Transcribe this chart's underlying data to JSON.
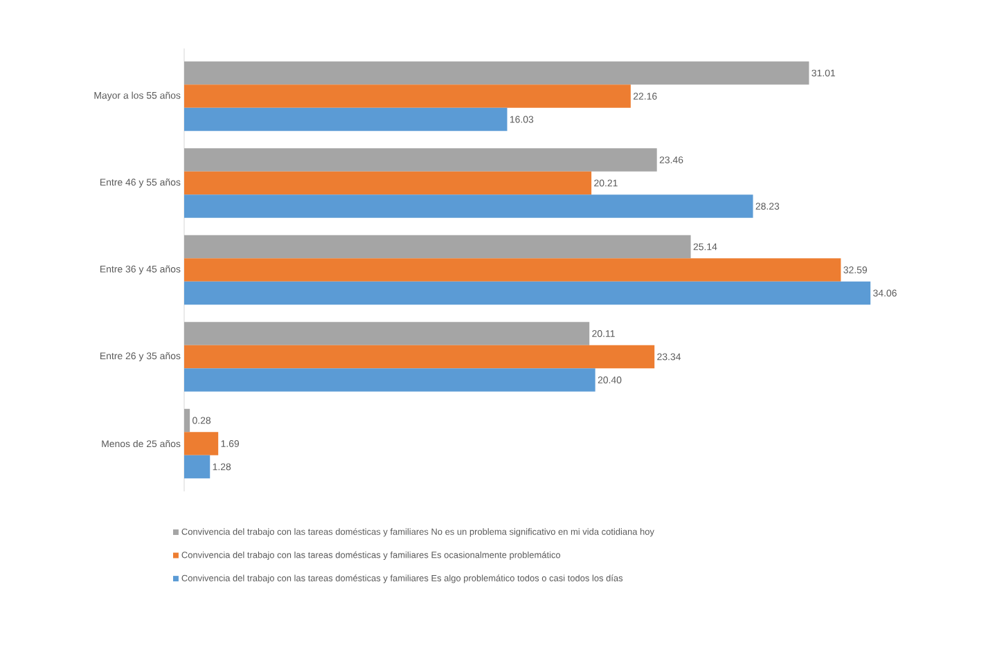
{
  "chart_data": {
    "type": "bar",
    "orientation": "horizontal",
    "categories": [
      "Mayor a los 55 años",
      "Entre 46 y 55 años",
      "Entre 36 y 45 años",
      "Entre 26 y 35 años",
      "Menos de 25 años"
    ],
    "series": [
      {
        "name": "Convivencia del trabajo con las tareas domésticas y familiares No es un problema significativo en mi vida cotidiana hoy",
        "color": "#a5a5a5",
        "values": [
          31.01,
          23.46,
          25.14,
          20.11,
          0.28
        ],
        "value_labels": [
          "31.01",
          "23.46",
          "25.14",
          "20.11",
          "0.28"
        ]
      },
      {
        "name": "Convivencia del trabajo con las tareas domésticas y familiares Es ocasionalmente problemático",
        "color": "#ed7d31",
        "values": [
          22.16,
          20.21,
          32.59,
          23.34,
          1.69
        ],
        "value_labels": [
          "22.16",
          "20.21",
          "32.59",
          "23.34",
          "1.69"
        ]
      },
      {
        "name": "Convivencia del trabajo con las tareas domésticas y familiares Es algo problemático todos o casi todos los días",
        "color": "#5b9bd5",
        "values": [
          16.03,
          28.23,
          34.06,
          20.4,
          1.28
        ],
        "value_labels": [
          "16.03",
          "28.23",
          "34.06",
          "20.40",
          "1.28"
        ]
      }
    ],
    "legend": "bottom"
  }
}
